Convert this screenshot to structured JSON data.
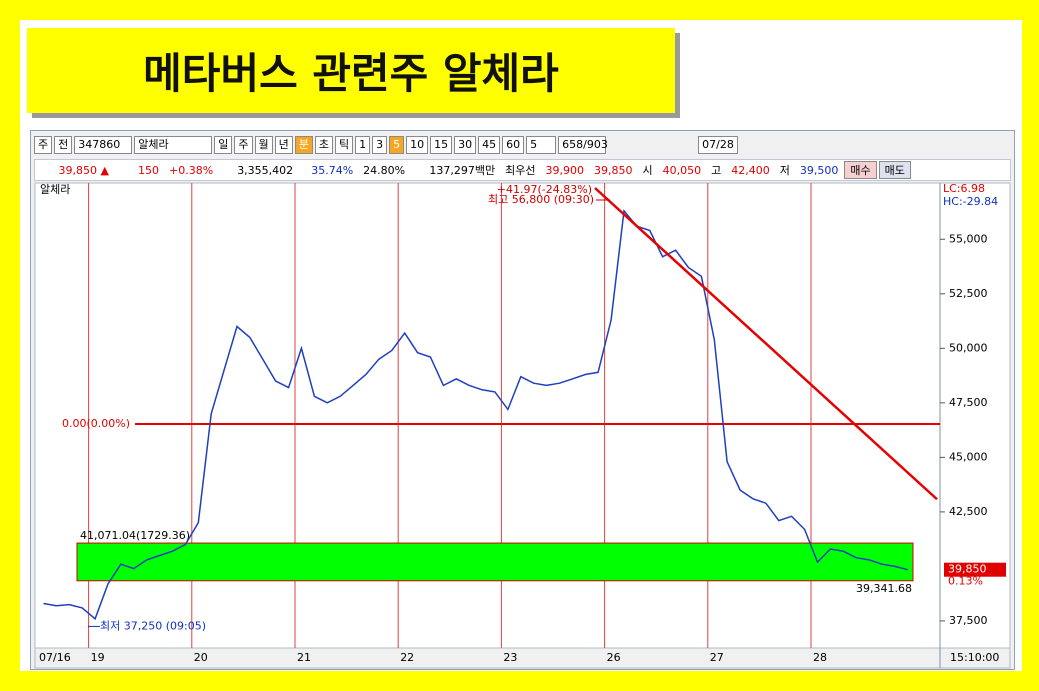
{
  "header": {
    "title": "메타버스 관련주 알체라"
  },
  "toolbar": {
    "items": [
      "주",
      "전",
      "347860",
      "알체라",
      "일",
      "주",
      "월",
      "년",
      "분",
      "초",
      "틱",
      "1",
      "3",
      "5",
      "10",
      "15",
      "30",
      "45",
      "60",
      "5",
      "658/903",
      "07/28"
    ]
  },
  "quote_bar": {
    "items": [
      "39,850 ▲",
      "150",
      "+0.38%",
      "3,355,402",
      "35.74%",
      "24.80%",
      "137,297백만",
      "최우선",
      "39,900",
      "39,850",
      "시",
      "40,050",
      "고",
      "42,400",
      "저",
      "39,500",
      "매수",
      "매도"
    ]
  },
  "chart_data": {
    "type": "line",
    "categories": [
      "07/16",
      null,
      null,
      null,
      "19",
      null,
      null,
      null,
      null,
      null,
      null,
      null,
      "20",
      null,
      null,
      null,
      null,
      null,
      null,
      null,
      "21",
      null,
      null,
      null,
      null,
      null,
      null,
      null,
      "22",
      null,
      null,
      null,
      null,
      null,
      null,
      null,
      "23",
      null,
      null,
      null,
      null,
      null,
      null,
      null,
      "26",
      null,
      null,
      null,
      null,
      null,
      null,
      null,
      "27",
      null,
      null,
      null,
      null,
      null,
      null,
      null,
      "28",
      null,
      null,
      null,
      null,
      null,
      null,
      null
    ],
    "series": [
      {
        "name": "알체라",
        "color": "#1f3fbf",
        "values": [
          38300,
          38200,
          38250,
          38100,
          37600,
          39200,
          40100,
          39900,
          40300,
          40500,
          40700,
          41000,
          42000,
          47000,
          49000,
          51000,
          50500,
          49500,
          48500,
          48200,
          50000,
          47800,
          47500,
          47800,
          48300,
          48800,
          49500,
          49900,
          50700,
          49800,
          49600,
          48300,
          48600,
          48300,
          48100,
          48000,
          47200,
          48700,
          48400,
          48300,
          48400,
          48600,
          48800,
          48900,
          51300,
          56300,
          55600,
          55400,
          54200,
          54500,
          53700,
          53300,
          50400,
          44800,
          43500,
          43100,
          42900,
          42100,
          42300,
          41700,
          40200,
          40800,
          40700,
          40400,
          40300,
          40100,
          40000,
          39850
        ]
      }
    ],
    "ylim": [
      36260,
      57580
    ],
    "yticks": [
      {
        "value": 37500,
        "label": "37,500"
      },
      {
        "value": 42500,
        "label": "42,500"
      },
      {
        "value": 45000,
        "label": "45,000"
      },
      {
        "value": 47500,
        "label": "47,500"
      },
      {
        "value": 50000,
        "label": "50,000"
      },
      {
        "value": 52500,
        "label": "52,500"
      },
      {
        "value": 55000,
        "label": "55,000"
      }
    ],
    "reference_line": {
      "value": 46530,
      "label": "0.00(0.00%)",
      "color": "#e60000"
    },
    "band": {
      "upper": 41071.04,
      "lower": 39341.68,
      "upper_label": "41,071.04(1729.36)",
      "lower_label": "39,341.68",
      "color": "#00ff00"
    },
    "trend_line": {
      "from": 56800,
      "to": 43080,
      "color": "#e60000",
      "label": "+41.97(-24.83%)"
    },
    "high": {
      "value": 56800,
      "label": "최고 56,800 (09:30)"
    },
    "low": {
      "value": 37250,
      "label": "최저 37,250 (09:05)"
    },
    "current": {
      "value": 39850,
      "label": "39,850",
      "change": "0.13%"
    },
    "lc": "LC:6.98",
    "hc": "HC:-29.84",
    "time": "15:10:00"
  }
}
